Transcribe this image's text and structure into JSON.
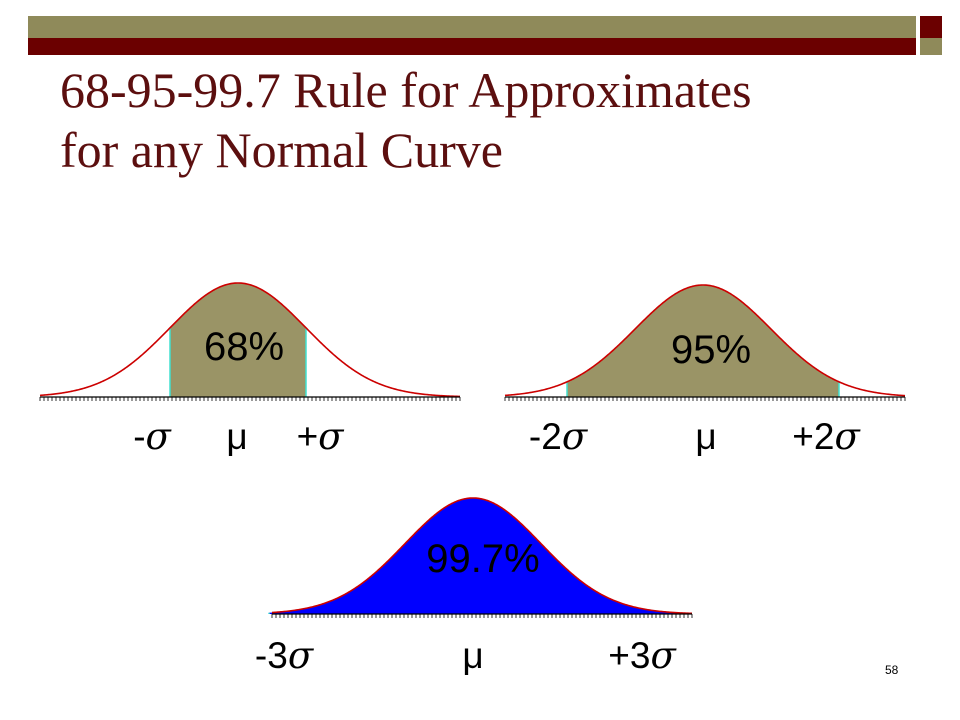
{
  "title": {
    "line1": "68-95-99.7 Rule for Approximates",
    "line2": "for any Normal Curve"
  },
  "colors": {
    "olive": "#8f8a5a",
    "maroon": "#6b0000",
    "curve_red": "#cc0000",
    "fill_olive": "#9a9466",
    "fill_blue": "#0000ff",
    "edge_cyan": "#40e0d0"
  },
  "curves": [
    {
      "id": "one-sigma",
      "percent": "68%",
      "fill": "#9a9466",
      "shade_sd": 1,
      "labels": {
        "left": "-",
        "center": "μ",
        "right": "+",
        "symbol": "σ"
      }
    },
    {
      "id": "two-sigma",
      "percent": "95%",
      "fill": "#9a9466",
      "shade_sd": 2,
      "labels": {
        "left": "-2",
        "center": "μ",
        "right": "+2",
        "symbol": "σ"
      }
    },
    {
      "id": "three-sigma",
      "percent": "99.7%",
      "fill": "#0000ff",
      "shade_sd": 3,
      "labels": {
        "left": "-3",
        "center": "μ",
        "right": "+3",
        "symbol": "σ"
      }
    }
  ],
  "page_number": "58"
}
